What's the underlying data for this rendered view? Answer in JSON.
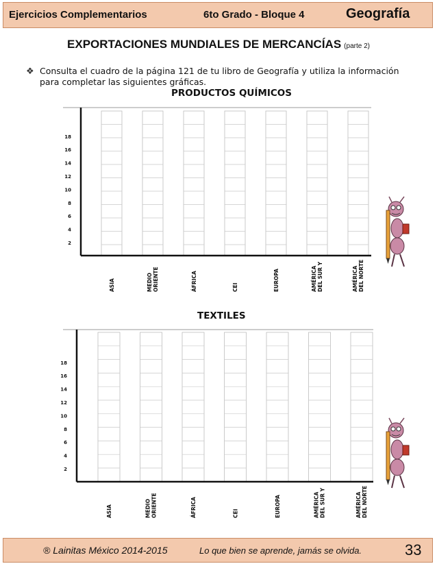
{
  "header": {
    "left": "Ejercicios Complementarios",
    "middle": "6to Grado - Bloque  4",
    "subject": "Geografía"
  },
  "title": {
    "main": "EXPORTACIONES MUNDIALES DE MERCANCÍAS",
    "sub": "(parte 2)"
  },
  "instruction": "Consulta el cuadro de la página 121 de tu libro de Geografía y utiliza la información para completar las siguientes gráficas.",
  "charts": [
    {
      "title": "PRODUCTOS QUÍMICOS",
      "y_ticks": [
        "2",
        "4",
        "6",
        "8",
        "10",
        "12",
        "14",
        "16",
        "18"
      ],
      "categories": [
        "ASIA",
        "MEDIO ORIENTE",
        "ÁFRICA",
        "CEI",
        "EUROPA",
        "AMÉRICA DEL SUR Y",
        "AMÉRICA DEL NORTE"
      ]
    },
    {
      "title": "TEXTILES",
      "y_ticks": [
        "2",
        "4",
        "6",
        "8",
        "10",
        "12",
        "14",
        "16",
        "18"
      ],
      "categories": [
        "ASIA",
        "MEDIO ORIENTE",
        "ÁFRICA",
        "CEI",
        "EUROPA",
        "AMÉRICA DEL SUR Y",
        "AMÉRICA DEL NORTE"
      ]
    }
  ],
  "footer": {
    "copyright": "® Lainitas México 2014-2015",
    "motto": "Lo que bien se aprende, jamás se olvida.",
    "page": "33"
  },
  "colors": {
    "band": "#f3c9ad",
    "band_border": "#c98b64",
    "ant": "#c98aa6"
  },
  "icons": [
    "ant-with-pencil-illustration"
  ]
}
